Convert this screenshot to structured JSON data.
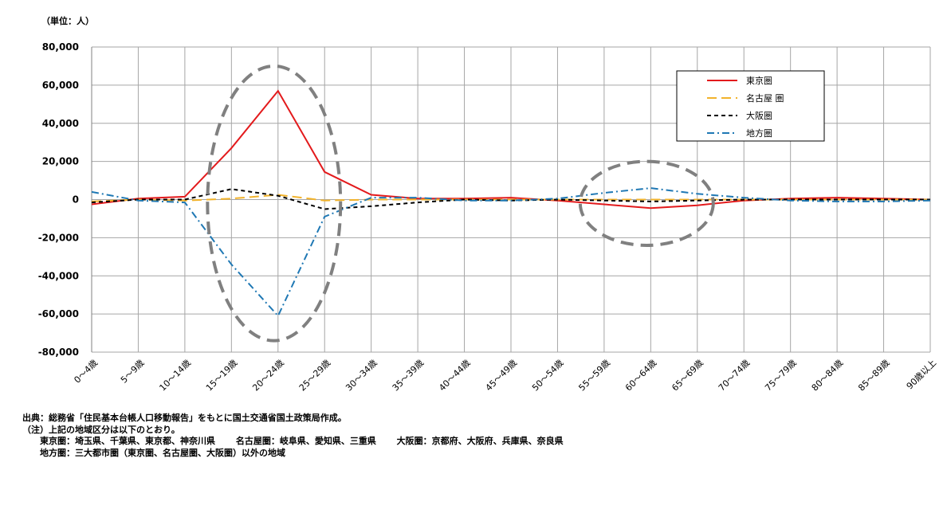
{
  "unit_label": "（単位：人）",
  "chart_data": {
    "type": "line",
    "categories": [
      "0～4歳",
      "5～9歳",
      "10～14歳",
      "15～19歳",
      "20～24歳",
      "25～29歳",
      "30～34歳",
      "35～39歳",
      "40～44歳",
      "45～49歳",
      "50～54歳",
      "55～59歳",
      "60～64歳",
      "65～69歳",
      "70～74歳",
      "75～79歳",
      "80～84歳",
      "85～89歳",
      "90歳以上"
    ],
    "ylim": [
      -80000,
      80000
    ],
    "yticks": [
      80000,
      60000,
      40000,
      20000,
      0,
      -20000,
      -40000,
      -60000,
      -80000
    ],
    "ytick_labels": [
      "80,000",
      "60,000",
      "40,000",
      "20,000",
      "0",
      "-20,000",
      "-40,000",
      "-60,000",
      "-80,000"
    ],
    "grid": true,
    "legend_position": "top-right",
    "series": [
      {
        "name": "東京圏",
        "color": "#e31a1c",
        "dash": "solid",
        "values": [
          -2500,
          500,
          1500,
          27000,
          57000,
          14500,
          2500,
          500,
          500,
          1000,
          -500,
          -2500,
          -4500,
          -3000,
          -500,
          500,
          1000,
          500,
          0
        ]
      },
      {
        "name": "名古屋 圏",
        "color": "#f2b32b",
        "dash": "long-dash",
        "values": [
          -1000,
          0,
          -500,
          500,
          2500,
          -500,
          0,
          0,
          0,
          0,
          0,
          0,
          0,
          0,
          0,
          0,
          0,
          0,
          0
        ]
      },
      {
        "name": "大阪圏",
        "color": "#000000",
        "dash": "short-dash",
        "values": [
          -1500,
          0,
          0,
          5500,
          2000,
          -5000,
          -3500,
          -1500,
          0,
          -500,
          0,
          -500,
          -1000,
          -500,
          0,
          0,
          0,
          0,
          0
        ]
      },
      {
        "name": "地方圏",
        "color": "#1f78b4",
        "dash": "dash-dot",
        "values": [
          4000,
          -500,
          -1500,
          -34000,
          -61000,
          -9000,
          1000,
          1000,
          -500,
          -500,
          500,
          3500,
          6000,
          3000,
          1000,
          -500,
          -1000,
          -1000,
          -500
        ]
      }
    ],
    "annotation_ellipses": [
      {
        "category_from": "15～19歳",
        "category_to": "25～29歳",
        "y_range": [
          -74000,
          70000
        ]
      },
      {
        "category_from": "55～59歳",
        "category_to": "65～69歳",
        "y_range": [
          -24000,
          20000
        ]
      }
    ]
  },
  "notes": [
    "出典：総務省「住民基本台帳人口移動報告」をもとに国土交通省国土政策局作成。",
    "（注）上記の地域区分は以下のとおり。",
    "　　東京圏：埼玉県、千葉県、東京都、神奈川県　　 名古屋圏：岐阜県、愛知県、三重県　　 大阪圏：京都府、大阪府、兵庫県、奈良県",
    "　　地方圏：三大都市圏（東京圏、名古屋圏、大阪圏）以外の地域"
  ]
}
